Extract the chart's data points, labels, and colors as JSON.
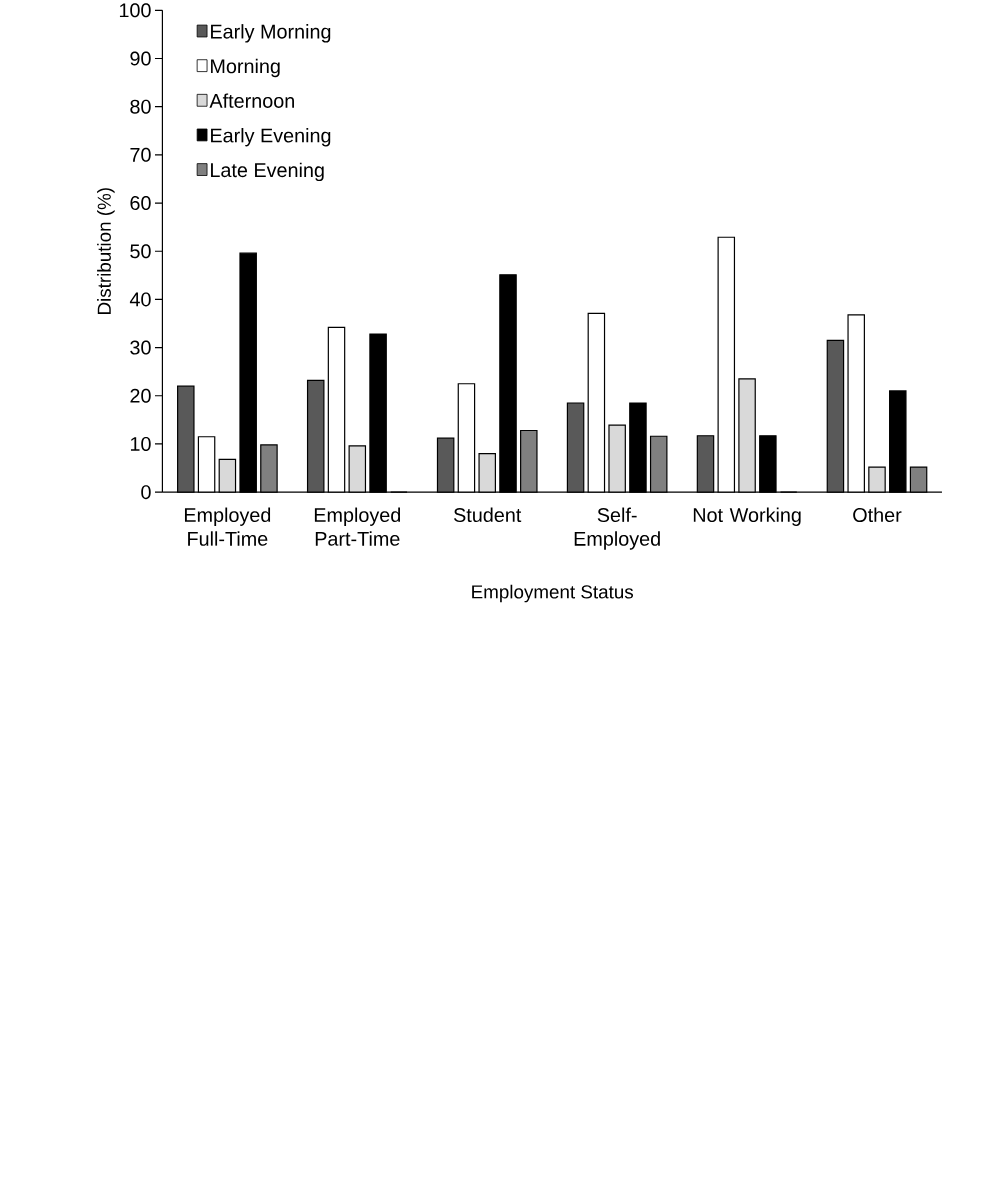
{
  "chart_data": {
    "type": "bar",
    "xlabel": "Employment Status",
    "ylabel": "Distribution (%)",
    "categories": [
      "Employed Full-Time",
      "Employed Part-Time",
      "Student",
      "Self-Employed",
      "Not Working",
      "Other"
    ],
    "series": [
      {
        "name": "Early Morning",
        "color": "#595959",
        "values": [
          22,
          23.2,
          11.2,
          18.5,
          11.7,
          31.5
        ]
      },
      {
        "name": "Morning",
        "color": "#ffffff",
        "values": [
          11.5,
          34.2,
          22.5,
          37.1,
          52.9,
          36.8
        ]
      },
      {
        "name": "Afternoon",
        "color": "#d9d9d9",
        "values": [
          6.8,
          9.6,
          8,
          13.9,
          23.5,
          5.2
        ]
      },
      {
        "name": "Early Evening",
        "color": "#000000",
        "values": [
          49.6,
          32.8,
          45.1,
          18.5,
          11.7,
          21
        ]
      },
      {
        "name": "Late Evening",
        "color": "#808080",
        "values": [
          9.8,
          0,
          12.8,
          11.6,
          0,
          5.2
        ]
      }
    ],
    "ylim": [
      0,
      100
    ],
    "yticks": [
      0,
      10,
      20,
      30,
      40,
      50,
      60,
      70,
      80,
      90,
      100
    ],
    "legend": "top left",
    "grid": false
  }
}
